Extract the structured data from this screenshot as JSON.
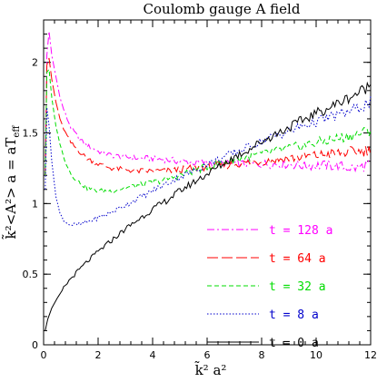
{
  "chart_data": {
    "type": "line",
    "title": "Coulomb gauge A field",
    "xlabel": "k̃² a²",
    "ylabel": "k̃²<A²> a  =  aT",
    "ylabel_sub": "eff",
    "xlim": [
      0,
      12
    ],
    "ylim": [
      0,
      2.3
    ],
    "x_ticks": [
      "0",
      "2",
      "4",
      "6",
      "8",
      "10",
      "12"
    ],
    "y_ticks": [
      "0",
      "0.5",
      "1",
      "1.5",
      "2"
    ],
    "grid": false,
    "legend_position": "right-middle",
    "series": [
      {
        "name": "t = 128 a",
        "color": "#ff00ff",
        "dash": "dash-dot",
        "points": [
          [
            0.06,
            1.2
          ],
          [
            0.12,
            2.05
          ],
          [
            0.2,
            2.22
          ],
          [
            0.3,
            2.05
          ],
          [
            0.45,
            1.9
          ],
          [
            0.6,
            1.75
          ],
          [
            0.8,
            1.63
          ],
          [
            1.0,
            1.54
          ],
          [
            1.3,
            1.46
          ],
          [
            1.6,
            1.41
          ],
          [
            2.0,
            1.37
          ],
          [
            2.5,
            1.34
          ],
          [
            3.0,
            1.33
          ],
          [
            3.5,
            1.32
          ],
          [
            4.0,
            1.32
          ],
          [
            4.5,
            1.31
          ],
          [
            5.0,
            1.3
          ],
          [
            5.5,
            1.29
          ],
          [
            6.0,
            1.29
          ],
          [
            6.5,
            1.28
          ],
          [
            7.0,
            1.28
          ],
          [
            7.5,
            1.28
          ],
          [
            8.0,
            1.28
          ],
          [
            8.5,
            1.28
          ],
          [
            9.0,
            1.28
          ],
          [
            9.5,
            1.27
          ],
          [
            10.0,
            1.27
          ],
          [
            10.5,
            1.27
          ],
          [
            11.0,
            1.26
          ],
          [
            11.5,
            1.25
          ],
          [
            12.0,
            1.28
          ]
        ]
      },
      {
        "name": "t = 64 a",
        "color": "#ff0000",
        "dash": "long-dash",
        "points": [
          [
            0.06,
            1.2
          ],
          [
            0.12,
            1.98
          ],
          [
            0.2,
            2.03
          ],
          [
            0.3,
            1.88
          ],
          [
            0.45,
            1.72
          ],
          [
            0.6,
            1.6
          ],
          [
            0.8,
            1.5
          ],
          [
            1.0,
            1.43
          ],
          [
            1.3,
            1.37
          ],
          [
            1.6,
            1.32
          ],
          [
            2.0,
            1.28
          ],
          [
            2.5,
            1.25
          ],
          [
            3.0,
            1.24
          ],
          [
            3.5,
            1.23
          ],
          [
            4.0,
            1.23
          ],
          [
            4.5,
            1.23
          ],
          [
            5.0,
            1.24
          ],
          [
            5.5,
            1.25
          ],
          [
            6.0,
            1.26
          ],
          [
            6.5,
            1.27
          ],
          [
            7.0,
            1.28
          ],
          [
            7.5,
            1.29
          ],
          [
            8.0,
            1.3
          ],
          [
            8.5,
            1.31
          ],
          [
            9.0,
            1.32
          ],
          [
            9.5,
            1.33
          ],
          [
            10.0,
            1.34
          ],
          [
            10.5,
            1.35
          ],
          [
            11.0,
            1.36
          ],
          [
            11.5,
            1.37
          ],
          [
            12.0,
            1.38
          ]
        ]
      },
      {
        "name": "t = 32 a",
        "color": "#00dd00",
        "dash": "short-dash",
        "points": [
          [
            0.06,
            1.2
          ],
          [
            0.12,
            1.93
          ],
          [
            0.2,
            1.95
          ],
          [
            0.3,
            1.75
          ],
          [
            0.45,
            1.55
          ],
          [
            0.6,
            1.42
          ],
          [
            0.8,
            1.3
          ],
          [
            1.0,
            1.21
          ],
          [
            1.3,
            1.15
          ],
          [
            1.6,
            1.11
          ],
          [
            2.0,
            1.09
          ],
          [
            2.5,
            1.09
          ],
          [
            3.0,
            1.11
          ],
          [
            3.5,
            1.13
          ],
          [
            4.0,
            1.15
          ],
          [
            4.5,
            1.17
          ],
          [
            5.0,
            1.2
          ],
          [
            5.5,
            1.23
          ],
          [
            6.0,
            1.26
          ],
          [
            6.5,
            1.29
          ],
          [
            7.0,
            1.31
          ],
          [
            7.5,
            1.33
          ],
          [
            8.0,
            1.35
          ],
          [
            8.5,
            1.37
          ],
          [
            9.0,
            1.39
          ],
          [
            9.5,
            1.41
          ],
          [
            10.0,
            1.43
          ],
          [
            10.5,
            1.45
          ],
          [
            11.0,
            1.47
          ],
          [
            11.5,
            1.49
          ],
          [
            12.0,
            1.52
          ]
        ]
      },
      {
        "name": "t = 8 a",
        "color": "#0000cc",
        "dash": "dotted",
        "points": [
          [
            0.06,
            1.1
          ],
          [
            0.12,
            1.68
          ],
          [
            0.2,
            1.55
          ],
          [
            0.3,
            1.3
          ],
          [
            0.45,
            1.05
          ],
          [
            0.6,
            0.93
          ],
          [
            0.8,
            0.87
          ],
          [
            1.0,
            0.85
          ],
          [
            1.3,
            0.85
          ],
          [
            1.6,
            0.87
          ],
          [
            2.0,
            0.9
          ],
          [
            2.5,
            0.94
          ],
          [
            3.0,
            0.99
          ],
          [
            3.5,
            1.04
          ],
          [
            4.0,
            1.09
          ],
          [
            4.5,
            1.14
          ],
          [
            5.0,
            1.19
          ],
          [
            5.5,
            1.23
          ],
          [
            6.0,
            1.28
          ],
          [
            6.5,
            1.32
          ],
          [
            7.0,
            1.36
          ],
          [
            7.5,
            1.4
          ],
          [
            8.0,
            1.44
          ],
          [
            8.5,
            1.48
          ],
          [
            9.0,
            1.51
          ],
          [
            9.5,
            1.55
          ],
          [
            10.0,
            1.58
          ],
          [
            10.5,
            1.61
          ],
          [
            11.0,
            1.64
          ],
          [
            11.5,
            1.67
          ],
          [
            12.0,
            1.72
          ]
        ]
      },
      {
        "name": "t = 0 a",
        "color": "#000000",
        "dash": "solid",
        "points": [
          [
            0.06,
            0.1
          ],
          [
            0.15,
            0.18
          ],
          [
            0.3,
            0.26
          ],
          [
            0.5,
            0.33
          ],
          [
            0.8,
            0.42
          ],
          [
            1.0,
            0.47
          ],
          [
            1.5,
            0.57
          ],
          [
            2.0,
            0.66
          ],
          [
            2.5,
            0.74
          ],
          [
            3.0,
            0.82
          ],
          [
            3.5,
            0.89
          ],
          [
            4.0,
            0.96
          ],
          [
            4.5,
            1.02
          ],
          [
            5.0,
            1.09
          ],
          [
            5.5,
            1.15
          ],
          [
            6.0,
            1.21
          ],
          [
            6.5,
            1.27
          ],
          [
            7.0,
            1.33
          ],
          [
            7.5,
            1.38
          ],
          [
            8.0,
            1.44
          ],
          [
            8.5,
            1.49
          ],
          [
            9.0,
            1.54
          ],
          [
            9.5,
            1.59
          ],
          [
            10.0,
            1.64
          ],
          [
            10.5,
            1.68
          ],
          [
            11.0,
            1.73
          ],
          [
            11.5,
            1.78
          ],
          [
            12.0,
            1.84
          ]
        ]
      }
    ]
  }
}
